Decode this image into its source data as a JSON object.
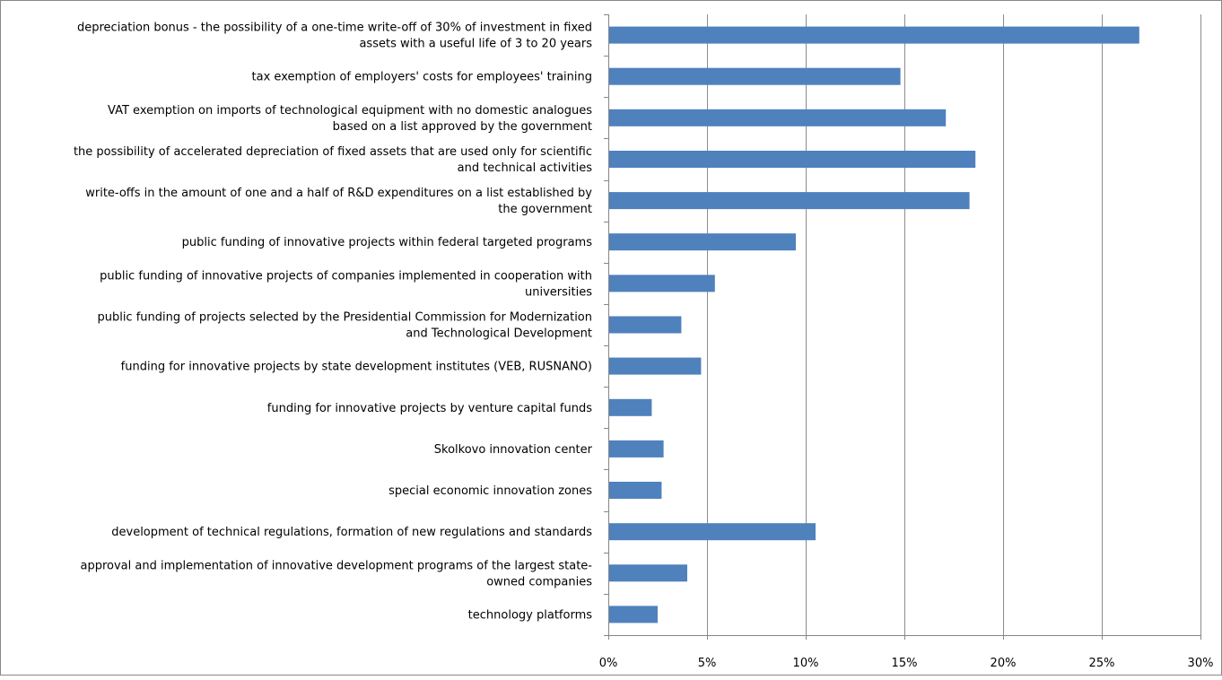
{
  "chart_data": {
    "type": "bar",
    "orientation": "horizontal",
    "title": "",
    "xlabel": "",
    "ylabel": "",
    "xlim": [
      0,
      0.3
    ],
    "grid": true,
    "legend": "none",
    "bar_color": "#4F81BD",
    "grid_color": "#8C8C8C",
    "tick_labels": [
      "0%",
      "5%",
      "10%",
      "15%",
      "20%",
      "25%",
      "30%"
    ],
    "tick_values": [
      0,
      0.05,
      0.1,
      0.15,
      0.2,
      0.25,
      0.3
    ],
    "categories": [
      [
        "depreciation bonus  - the possibility of a one-time write-off of 30% of investment in fixed",
        "assets with a useful life of 3 to 20 years"
      ],
      [
        "tax exemption of employers' costs for employees' training"
      ],
      [
        "VAT exemption on imports of technological equipment with no domestic analogues",
        "based on a list approved by the government"
      ],
      [
        "the possibility of accelerated depreciation of fixed assets that are used only for scientific",
        "and technical activities"
      ],
      [
        "write-offs in the amount of one and a half of R&D expenditures  on a list established by",
        "the government"
      ],
      [
        "public funding of innovative projects within federal targeted programs"
      ],
      [
        "public funding of innovative projects of companies implemented in cooperation with",
        "universities"
      ],
      [
        "public funding of projects selected by the Presidential Commission for Modernization",
        "and Technological Development"
      ],
      [
        "funding for innovative projects by state development institutes (VEB, RUSNANO)"
      ],
      [
        "funding for innovative  projects by venture capital funds"
      ],
      [
        "Skolkovo innovation  center"
      ],
      [
        "special economic innovation  zones"
      ],
      [
        "development of technical regulations, formation of new regulations and standards"
      ],
      [
        "approval and implementation of innovative development programs of the largest state-",
        "owned companies"
      ],
      [
        "technology platforms"
      ]
    ],
    "values": [
      0.269,
      0.148,
      0.171,
      0.186,
      0.183,
      0.095,
      0.054,
      0.037,
      0.047,
      0.022,
      0.028,
      0.027,
      0.105,
      0.04,
      0.025
    ]
  }
}
